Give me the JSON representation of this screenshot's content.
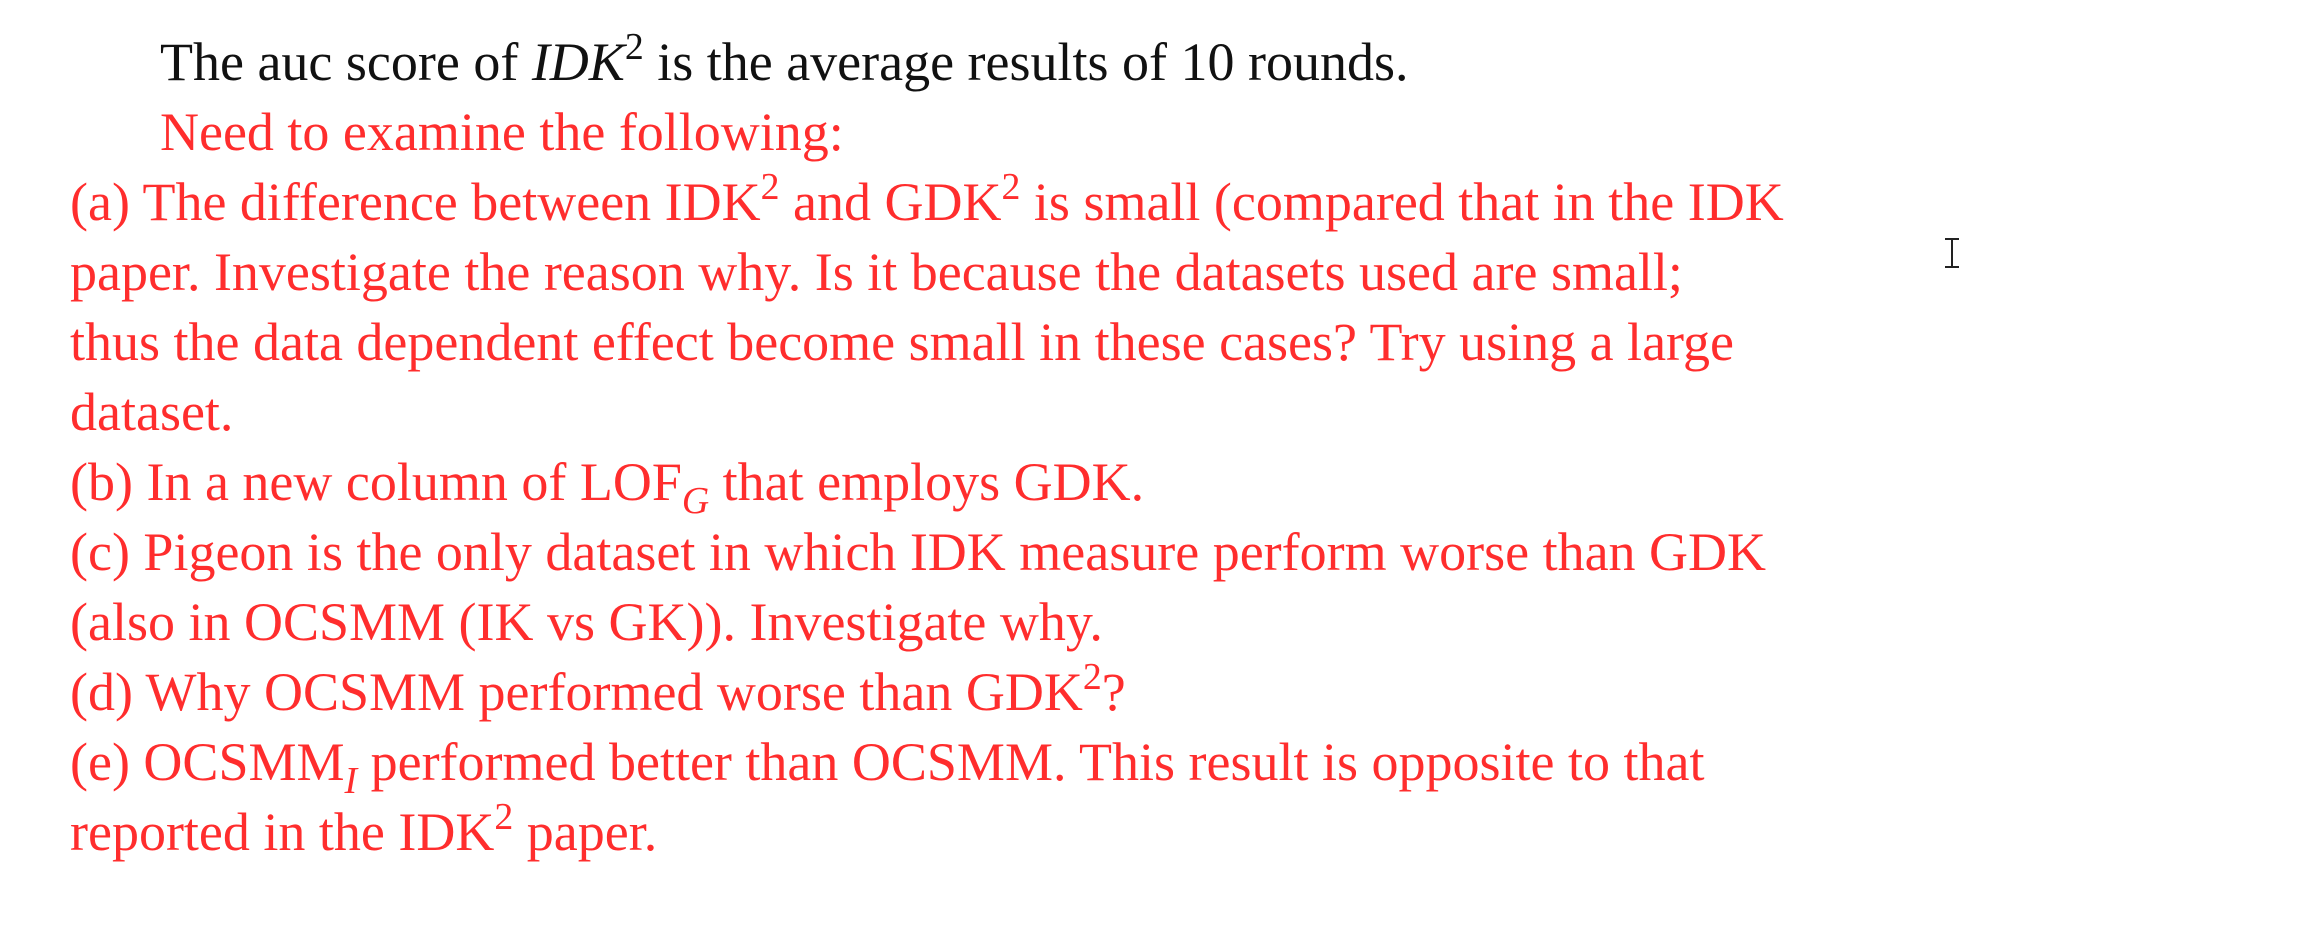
{
  "doc": {
    "l1": {
      "a": "The auc score of ",
      "m": "IDK",
      "sup": "2",
      "b": " is the average results of 10 rounds."
    },
    "l2": "Need to examine the following:",
    "l3": {
      "a": "(a) The difference between IDK",
      "sup1": "2",
      "b": " and GDK",
      "sup2": "2",
      "c": " is small (compared that in the IDK"
    },
    "l4": "paper.  Investigate the reason why.  Is it because the datasets used are small;",
    "l5": "thus the data dependent effect become small in these cases?  Try using a large",
    "l6": "dataset.",
    "l7": {
      "a": "(b) In a new column of LOF",
      "sub": "G",
      "b": " that employs GDK."
    },
    "l8": "(c) Pigeon is the only dataset in which IDK measure perform worse than GDK",
    "l9": "(also in OCSMM (IK vs GK)). Investigate why.",
    "l10": {
      "a": "(d) Why OCSMM performed worse than GDK",
      "sup": "2",
      "b": "?"
    },
    "l11": {
      "a": "(e) OCSMM",
      "sub": "I",
      "b": " performed better than OCSMM. This result is opposite to that"
    },
    "l12": {
      "a": "reported in the IDK",
      "sup": "2",
      "b": " paper."
    }
  }
}
